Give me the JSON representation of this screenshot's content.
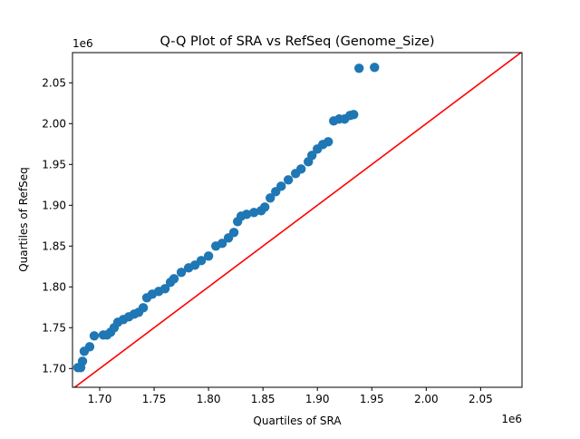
{
  "chart_data": {
    "type": "scatter",
    "title": "Q-Q Plot of SRA vs RefSeq (Genome_Size)",
    "xlabel": "Quartiles of SRA",
    "ylabel": "Quartiles of RefSeq",
    "x_offset_label": "1e6",
    "y_offset_label": "1e6",
    "xlim": [
      1.675,
      2.088
    ],
    "ylim": [
      1.677,
      2.087
    ],
    "xticks": [
      "1.70",
      "1.75",
      "1.80",
      "1.85",
      "1.90",
      "1.95",
      "2.00",
      "2.05"
    ],
    "yticks": [
      "1.70",
      "1.75",
      "1.80",
      "1.85",
      "1.90",
      "1.95",
      "2.00",
      "2.05"
    ],
    "grid": false,
    "point_color": "#1f77b4",
    "reference_line": {
      "type": "y=x",
      "color": "#ff0000"
    },
    "points": [
      [
        1.68,
        1.7011
      ],
      [
        1.6825,
        1.7011
      ],
      [
        1.6842,
        1.7089
      ],
      [
        1.6858,
        1.7211
      ],
      [
        1.6908,
        1.7267
      ],
      [
        1.695,
        1.74
      ],
      [
        1.7033,
        1.7411
      ],
      [
        1.7067,
        1.7411
      ],
      [
        1.71,
        1.7444
      ],
      [
        1.7133,
        1.75
      ],
      [
        1.7167,
        1.7567
      ],
      [
        1.7217,
        1.76
      ],
      [
        1.7267,
        1.7633
      ],
      [
        1.7317,
        1.7667
      ],
      [
        1.7358,
        1.7689
      ],
      [
        1.74,
        1.7744
      ],
      [
        1.7433,
        1.7867
      ],
      [
        1.7483,
        1.7911
      ],
      [
        1.7542,
        1.7944
      ],
      [
        1.76,
        1.7978
      ],
      [
        1.765,
        1.8056
      ],
      [
        1.7683,
        1.81
      ],
      [
        1.775,
        1.8178
      ],
      [
        1.7817,
        1.8233
      ],
      [
        1.7875,
        1.8267
      ],
      [
        1.7933,
        1.8322
      ],
      [
        1.8,
        1.8378
      ],
      [
        1.8067,
        1.85
      ],
      [
        1.8125,
        1.8533
      ],
      [
        1.8183,
        1.86
      ],
      [
        1.8233,
        1.8667
      ],
      [
        1.8267,
        1.88
      ],
      [
        1.83,
        1.8867
      ],
      [
        1.835,
        1.8889
      ],
      [
        1.8417,
        1.8911
      ],
      [
        1.8483,
        1.8933
      ],
      [
        1.8517,
        1.8978
      ],
      [
        1.8567,
        1.9089
      ],
      [
        1.8617,
        1.9167
      ],
      [
        1.8667,
        1.9233
      ],
      [
        1.8733,
        1.9311
      ],
      [
        1.88,
        1.9389
      ],
      [
        1.885,
        1.9444
      ],
      [
        1.8917,
        1.9533
      ],
      [
        1.895,
        1.9611
      ],
      [
        1.9,
        1.9689
      ],
      [
        1.905,
        1.9744
      ],
      [
        1.91,
        1.9778
      ],
      [
        1.915,
        2.0033
      ],
      [
        1.92,
        2.0056
      ],
      [
        1.925,
        2.0056
      ],
      [
        1.93,
        2.01
      ],
      [
        1.9333,
        2.0111
      ],
      [
        1.9383,
        2.0678
      ],
      [
        1.9525,
        2.0689
      ]
    ]
  }
}
